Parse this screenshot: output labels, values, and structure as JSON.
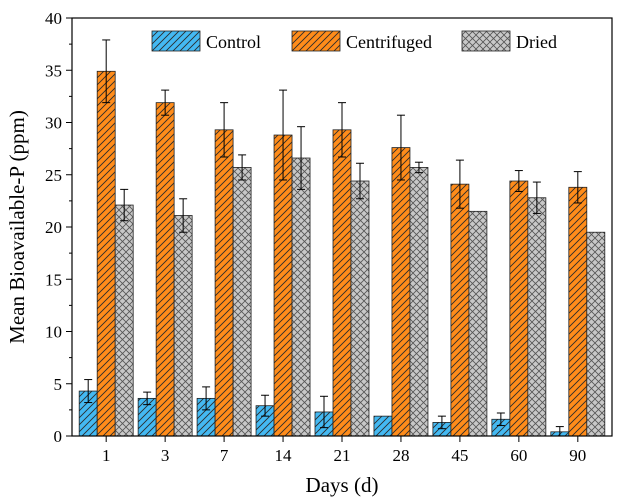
{
  "chart_data": {
    "type": "bar",
    "title": "",
    "xlabel": "Days (d)",
    "ylabel": "Mean Bioavailable-P (ppm)",
    "ylim": [
      0,
      40
    ],
    "yticks": [
      0,
      5,
      10,
      15,
      20,
      25,
      30,
      35,
      40
    ],
    "categories": [
      "1",
      "3",
      "7",
      "14",
      "21",
      "28",
      "45",
      "60",
      "90"
    ],
    "legend_position": "top",
    "grid": false,
    "series": [
      {
        "name": "Control",
        "color": "#44b9f2",
        "pattern": "diagonal-hatch",
        "values": [
          4.3,
          3.6,
          3.6,
          2.9,
          2.3,
          1.9,
          1.3,
          1.6,
          0.4
        ],
        "errors": [
          1.1,
          0.6,
          1.1,
          1.0,
          1.5,
          0.0,
          0.6,
          0.6,
          0.5
        ]
      },
      {
        "name": "Centrifuged",
        "color": "#ff8c1a",
        "pattern": "diagonal-hatch",
        "values": [
          34.9,
          31.9,
          29.3,
          28.8,
          29.3,
          27.6,
          24.1,
          24.4,
          23.8
        ],
        "errors": [
          3.0,
          1.2,
          2.6,
          4.3,
          2.6,
          3.1,
          2.3,
          1.0,
          1.5
        ]
      },
      {
        "name": "Dried",
        "color": "#c8c8c8",
        "pattern": "crosshatch",
        "values": [
          22.1,
          21.1,
          25.7,
          26.6,
          24.4,
          25.7,
          21.5,
          22.8,
          19.5
        ],
        "errors": [
          1.5,
          1.6,
          1.2,
          3.0,
          1.7,
          0.5,
          0.0,
          1.5,
          0.0
        ]
      }
    ]
  }
}
